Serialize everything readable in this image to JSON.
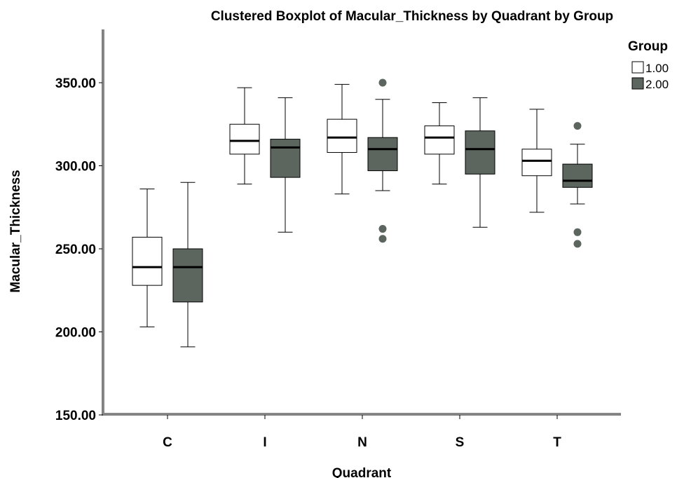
{
  "chart_data": {
    "type": "boxplot",
    "title": "Clustered Boxplot of Macular_Thickness by Quadrant by Group",
    "xlabel": "Quadrant",
    "ylabel": "Macular_Thickness",
    "ylim": [
      150,
      380
    ],
    "yticks": [
      "150.00",
      "200.00",
      "250.00",
      "300.00",
      "350.00"
    ],
    "ytick_values": [
      150,
      200,
      250,
      300,
      350
    ],
    "categories": [
      "C",
      "I",
      "N",
      "S",
      "T"
    ],
    "grid": false,
    "legend": {
      "title": "Group",
      "placement": "top-right"
    },
    "series": [
      {
        "name": "1.00",
        "color": "#ffffff",
        "boxes": [
          {
            "min": 203,
            "q1": 228,
            "median": 239,
            "q3": 257,
            "max": 286,
            "outliers": []
          },
          {
            "min": 289,
            "q1": 307,
            "median": 315,
            "q3": 325,
            "max": 347,
            "outliers": []
          },
          {
            "min": 283,
            "q1": 308,
            "median": 317,
            "q3": 328,
            "max": 349,
            "outliers": []
          },
          {
            "min": 289,
            "q1": 307,
            "median": 317,
            "q3": 324,
            "max": 338,
            "outliers": []
          },
          {
            "min": 272,
            "q1": 294,
            "median": 303,
            "q3": 310,
            "max": 334,
            "outliers": []
          }
        ]
      },
      {
        "name": "2.00",
        "color": "#5c665e",
        "boxes": [
          {
            "min": 191,
            "q1": 218,
            "median": 239,
            "q3": 250,
            "max": 290,
            "outliers": []
          },
          {
            "min": 260,
            "q1": 293,
            "median": 311,
            "q3": 316,
            "max": 341,
            "outliers": []
          },
          {
            "min": 285,
            "q1": 297,
            "median": 310,
            "q3": 317,
            "max": 340,
            "outliers": [
              350,
              262,
              256
            ]
          },
          {
            "min": 263,
            "q1": 295,
            "median": 310,
            "q3": 321,
            "max": 341,
            "outliers": []
          },
          {
            "min": 277,
            "q1": 287,
            "median": 291,
            "q3": 301,
            "max": 313,
            "outliers": [
              324,
              260,
              253
            ]
          }
        ]
      }
    ]
  }
}
